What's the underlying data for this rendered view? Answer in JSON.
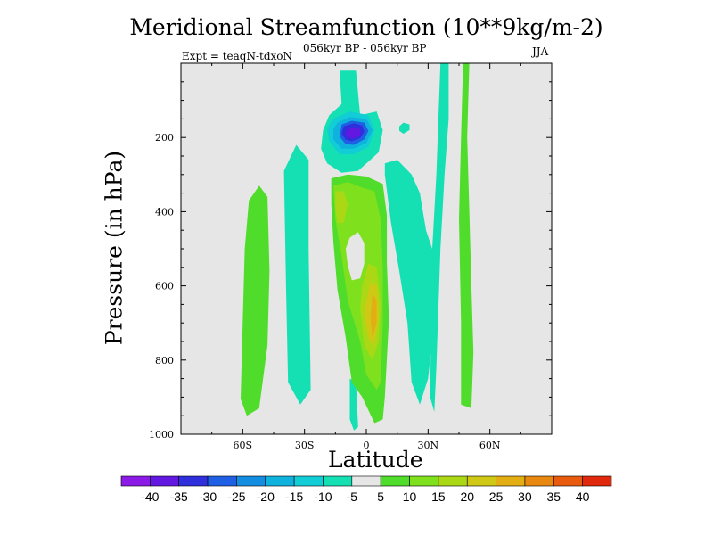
{
  "chart_data": {
    "type": "heatmap",
    "title": "Meridional Streamfunction (10**9kg/m-2)",
    "subtitle": "056kyr BP - 056kyr BP",
    "left_label": "Expt = teaqN-tdxoN",
    "right_label": "JJA",
    "xlabel": "Latitude",
    "ylabel": "Pressure (in hPa)",
    "xlim": [
      -90,
      90
    ],
    "ylim": [
      1000,
      0
    ],
    "x_ticks": [
      {
        "value": -60,
        "label": "60S"
      },
      {
        "value": -30,
        "label": "30S"
      },
      {
        "value": 0,
        "label": "0"
      },
      {
        "value": 30,
        "label": "30N"
      },
      {
        "value": 60,
        "label": "60N"
      }
    ],
    "y_ticks": [
      {
        "value": 200,
        "label": "200"
      },
      {
        "value": 400,
        "label": "400"
      },
      {
        "value": 600,
        "label": "600"
      },
      {
        "value": 800,
        "label": "800"
      },
      {
        "value": 1000,
        "label": "1000"
      }
    ],
    "background_color": "#e6e6e6",
    "colorbar": {
      "levels": [
        -40,
        -35,
        -30,
        -25,
        -20,
        -15,
        -10,
        -5,
        5,
        10,
        15,
        20,
        25,
        30,
        35,
        40
      ],
      "labels": [
        "-40",
        "-35",
        "-30",
        "-25",
        "-20",
        "-15",
        "-10",
        "-5",
        "5",
        "10",
        "15",
        "20",
        "25",
        "30",
        "35",
        "40"
      ],
      "colors": [
        "#8b1ae6",
        "#6218e0",
        "#2f2fdc",
        "#1f5fe4",
        "#138ddf",
        "#0fb2dd",
        "#12ccd6",
        "#14e0b4",
        "#e6e6e6",
        "#4fdc2a",
        "#7fe01d",
        "#abd815",
        "#cfc915",
        "#e2ae13",
        "#e88810",
        "#e85a0d",
        "#e0280c"
      ]
    },
    "regions": [
      {
        "name": "sh-band-green",
        "level": 7.5,
        "points": [
          [
            -57,
            370
          ],
          [
            -52,
            330
          ],
          [
            -48,
            360
          ],
          [
            -47,
            560
          ],
          [
            -48,
            760
          ],
          [
            -52,
            930
          ],
          [
            -58,
            950
          ],
          [
            -61,
            905
          ],
          [
            -60,
            700
          ],
          [
            -59,
            500
          ]
        ]
      },
      {
        "name": "sh-band-aqua",
        "level": -7.5,
        "points": [
          [
            -40,
            290
          ],
          [
            -34,
            220
          ],
          [
            -28,
            260
          ],
          [
            -28,
            500
          ],
          [
            -27,
            880
          ],
          [
            -32,
            920
          ],
          [
            -38,
            860
          ],
          [
            -39,
            600
          ]
        ]
      },
      {
        "name": "upper-trop-aqua",
        "level": -7.5,
        "points": [
          [
            -13,
            20
          ],
          [
            -5,
            20
          ],
          [
            -3,
            140
          ],
          [
            5,
            130
          ],
          [
            8,
            180
          ],
          [
            6,
            240
          ],
          [
            2,
            260
          ],
          [
            -4,
            290
          ],
          [
            -12,
            295
          ],
          [
            -19,
            270
          ],
          [
            -22,
            230
          ],
          [
            -21,
            180
          ],
          [
            -18,
            140
          ],
          [
            -12,
            110
          ]
        ]
      },
      {
        "name": "upper-cell-cyan",
        "level": -12.5,
        "points": [
          [
            -16,
            150
          ],
          [
            -8,
            130
          ],
          [
            1,
            140
          ],
          [
            4,
            180
          ],
          [
            1,
            225
          ],
          [
            -6,
            245
          ],
          [
            -13,
            245
          ],
          [
            -18,
            210
          ],
          [
            -19,
            175
          ]
        ]
      },
      {
        "name": "upper-cell-blue",
        "level": -17.5,
        "points": [
          [
            -14,
            160
          ],
          [
            -8,
            145
          ],
          [
            0,
            150
          ],
          [
            3,
            180
          ],
          [
            0,
            215
          ],
          [
            -6,
            230
          ],
          [
            -12,
            230
          ],
          [
            -16,
            205
          ],
          [
            -16,
            178
          ]
        ]
      },
      {
        "name": "upper-cell-royal",
        "level": -27.5,
        "points": [
          [
            -12,
            165
          ],
          [
            -7,
            155
          ],
          [
            -1,
            160
          ],
          [
            1,
            182
          ],
          [
            -1,
            205
          ],
          [
            -6,
            220
          ],
          [
            -10,
            218
          ],
          [
            -13,
            198
          ]
        ]
      },
      {
        "name": "upper-cell-indigo",
        "level": -35,
        "points": [
          [
            -11,
            170
          ],
          [
            -6,
            162
          ],
          [
            -2,
            168
          ],
          [
            -1,
            185
          ],
          [
            -3,
            202
          ],
          [
            -7,
            210
          ],
          [
            -10,
            206
          ],
          [
            -12,
            190
          ]
        ]
      },
      {
        "name": "upper-cell-core",
        "level": -40,
        "points": [
          [
            -9,
            178
          ],
          [
            -5,
            172
          ],
          [
            -3,
            180
          ],
          [
            -3,
            195
          ],
          [
            -6,
            203
          ],
          [
            -9,
            200
          ],
          [
            -10,
            190
          ]
        ]
      },
      {
        "name": "small-cell-aqua",
        "level": -7.5,
        "points": [
          [
            16,
            170
          ],
          [
            18,
            160
          ],
          [
            21,
            165
          ],
          [
            21,
            180
          ],
          [
            18,
            190
          ],
          [
            16,
            182
          ]
        ]
      },
      {
        "name": "nh-band-aqua",
        "level": -7.5,
        "points": [
          [
            9,
            270
          ],
          [
            15,
            260
          ],
          [
            22,
            300
          ],
          [
            26,
            350
          ],
          [
            29,
            450
          ],
          [
            32,
            500
          ],
          [
            33,
            700
          ],
          [
            30,
            850
          ],
          [
            26,
            920
          ],
          [
            22,
            860
          ],
          [
            20,
            700
          ],
          [
            16,
            560
          ],
          [
            12,
            430
          ],
          [
            9,
            300
          ]
        ]
      },
      {
        "name": "nh-column-aqua",
        "level": -7.5,
        "points": [
          [
            36,
            0
          ],
          [
            40,
            0
          ],
          [
            40,
            150
          ],
          [
            38,
            300
          ],
          [
            36,
            500
          ],
          [
            34,
            820
          ],
          [
            33,
            940
          ],
          [
            31,
            900
          ],
          [
            32,
            500
          ],
          [
            34,
            300
          ],
          [
            35,
            150
          ]
        ]
      },
      {
        "name": "far-nh-green",
        "level": 7.5,
        "points": [
          [
            47,
            0
          ],
          [
            50,
            0
          ],
          [
            49,
            200
          ],
          [
            50,
            400
          ],
          [
            51,
            600
          ],
          [
            52,
            780
          ],
          [
            51,
            930
          ],
          [
            46,
            920
          ],
          [
            46,
            700
          ],
          [
            45,
            420
          ],
          [
            46,
            200
          ]
        ]
      },
      {
        "name": "surface-aqua",
        "level": -7.5,
        "points": [
          [
            -8,
            850
          ],
          [
            -5,
            860
          ],
          [
            -4,
            980
          ],
          [
            -6,
            990
          ],
          [
            -8,
            960
          ]
        ]
      },
      {
        "name": "equatorial-green",
        "level": 7.5,
        "points": [
          [
            -17,
            310
          ],
          [
            -9,
            300
          ],
          [
            0,
            305
          ],
          [
            8,
            325
          ],
          [
            10,
            410
          ],
          [
            10,
            540
          ],
          [
            11,
            690
          ],
          [
            9,
            900
          ],
          [
            8,
            960
          ],
          [
            4,
            970
          ],
          [
            -2,
            900
          ],
          [
            -7,
            860
          ],
          [
            -10,
            740
          ],
          [
            -14,
            610
          ],
          [
            -16,
            480
          ],
          [
            -17,
            380
          ]
        ]
      },
      {
        "name": "equatorial-lime",
        "level": 12.5,
        "points": [
          [
            -16,
            330
          ],
          [
            -9,
            320
          ],
          [
            -2,
            335
          ],
          [
            4,
            345
          ],
          [
            7,
            420
          ],
          [
            8,
            550
          ],
          [
            8,
            700
          ],
          [
            7,
            860
          ],
          [
            5,
            880
          ],
          [
            0,
            840
          ],
          [
            -3,
            750
          ],
          [
            -9,
            640
          ],
          [
            -12,
            520
          ],
          [
            -15,
            420
          ]
        ]
      },
      {
        "name": "equatorial-olive",
        "level": 17.5,
        "points": [
          [
            -15,
            345
          ],
          [
            -11,
            345
          ],
          [
            -9,
            380
          ],
          [
            -11,
            430
          ],
          [
            -14,
            430
          ],
          [
            -15,
            390
          ]
        ]
      },
      {
        "name": "equatorial-olive-low",
        "level": 17.5,
        "points": [
          [
            1,
            540
          ],
          [
            5,
            550
          ],
          [
            7,
            650
          ],
          [
            6,
            750
          ],
          [
            3,
            800
          ],
          [
            -1,
            760
          ],
          [
            -3,
            660
          ],
          [
            -2,
            600
          ]
        ]
      },
      {
        "name": "equatorial-gold",
        "level": 22.5,
        "points": [
          [
            2,
            590
          ],
          [
            5,
            600
          ],
          [
            6,
            680
          ],
          [
            4,
            760
          ],
          [
            1,
            740
          ],
          [
            -1,
            670
          ]
        ]
      },
      {
        "name": "equatorial-orange",
        "level": 27.5,
        "points": [
          [
            3,
            620
          ],
          [
            5,
            640
          ],
          [
            5,
            700
          ],
          [
            3,
            740
          ],
          [
            2,
            690
          ]
        ]
      },
      {
        "name": "equatorial-gap",
        "level": 0,
        "points": [
          [
            -8,
            470
          ],
          [
            -4,
            455
          ],
          [
            -1,
            485
          ],
          [
            -1,
            540
          ],
          [
            -3,
            580
          ],
          [
            -7,
            585
          ],
          [
            -9,
            545
          ],
          [
            -10,
            500
          ]
        ]
      }
    ]
  }
}
